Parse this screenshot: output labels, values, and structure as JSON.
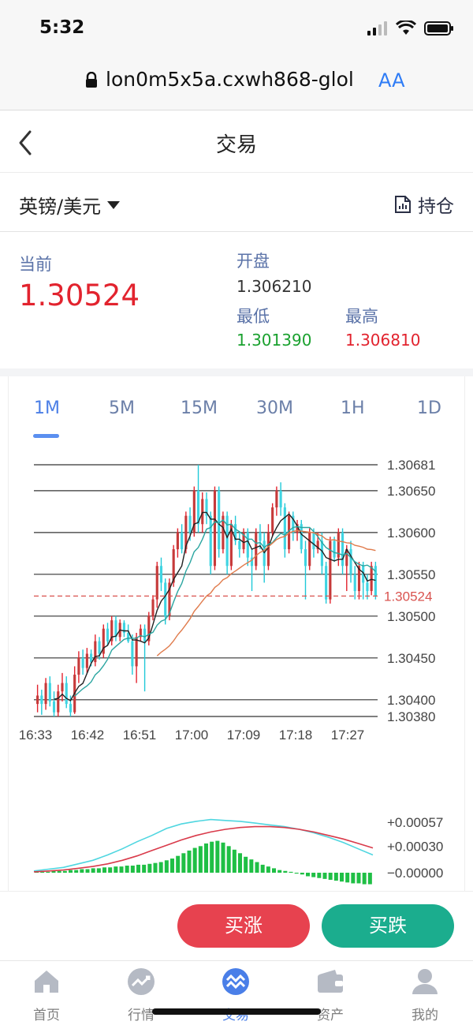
{
  "status_bar": {
    "time": "5:32"
  },
  "browser": {
    "url": "lon0m5x5a.cxwh868-glol",
    "text_size_label": "AA"
  },
  "header": {
    "title": "交易"
  },
  "symbol": {
    "name": "英镑/美元",
    "positions_label": "持仓"
  },
  "quote": {
    "current_label": "当前",
    "current_value": "1.30524",
    "open_label": "开盘",
    "open_value": "1.306210",
    "low_label": "最低",
    "low_value": "1.301390",
    "high_label": "最高",
    "high_value": "1.306810"
  },
  "colors": {
    "up": "#e2232e",
    "down": "#1aa12f",
    "accent": "#4c7fe6",
    "buy": "#e7424f",
    "sell": "#1bad8e"
  },
  "timeframes": [
    {
      "label": "1M",
      "active": true
    },
    {
      "label": "5M",
      "active": false
    },
    {
      "label": "15M",
      "active": false
    },
    {
      "label": "30M",
      "active": false
    },
    {
      "label": "1H",
      "active": false
    },
    {
      "label": "1D",
      "active": false
    }
  ],
  "chart_data": [
    {
      "type": "candlestick",
      "y_ticks": [
        "1.30681",
        "1.30650",
        "1.30600",
        "1.30550",
        "1.30500",
        "1.30450",
        "1.30400",
        "1.30380"
      ],
      "y_values": [
        1.30681,
        1.3065,
        1.306,
        1.3055,
        1.305,
        1.3045,
        1.304,
        1.3038
      ],
      "ylim": [
        1.3038,
        1.30681
      ],
      "current_price_label": "1.30524",
      "current_price": 1.30524,
      "x_ticks": [
        "16:33",
        "16:42",
        "16:51",
        "17:00",
        "17:09",
        "17:18",
        "17:27"
      ],
      "candles": [
        [
          1.30395,
          1.30405,
          1.30385,
          1.30418
        ],
        [
          1.30405,
          1.30395,
          1.30382,
          1.30412
        ],
        [
          1.30395,
          1.3042,
          1.30388,
          1.30426
        ],
        [
          1.3042,
          1.30398,
          1.30392,
          1.30428
        ],
        [
          1.30398,
          1.30385,
          1.3038,
          1.3041
        ],
        [
          1.30385,
          1.3041,
          1.3038,
          1.30418
        ],
        [
          1.3041,
          1.3042,
          1.30398,
          1.30432
        ],
        [
          1.3042,
          1.30395,
          1.3039,
          1.30428
        ],
        [
          1.30395,
          1.30385,
          1.3038,
          1.30405
        ],
        [
          1.30385,
          1.3043,
          1.30383,
          1.3044
        ],
        [
          1.3043,
          1.3045,
          1.3042,
          1.30458
        ],
        [
          1.3045,
          1.30438,
          1.3043,
          1.3046
        ],
        [
          1.30438,
          1.30455,
          1.30432,
          1.30462
        ],
        [
          1.30455,
          1.30445,
          1.3044,
          1.3046
        ],
        [
          1.30445,
          1.3047,
          1.3044,
          1.30478
        ],
        [
          1.3047,
          1.30455,
          1.30448,
          1.30475
        ],
        [
          1.30455,
          1.30485,
          1.3045,
          1.3049
        ],
        [
          1.30485,
          1.3047,
          1.30465,
          1.30492
        ],
        [
          1.3047,
          1.30495,
          1.30465,
          1.305
        ],
        [
          1.30495,
          1.30475,
          1.3047,
          1.305
        ],
        [
          1.30475,
          1.30492,
          1.3047,
          1.30496
        ],
        [
          1.30492,
          1.3048,
          1.30475,
          1.30495
        ],
        [
          1.3048,
          1.3047,
          1.30468,
          1.3049
        ],
        [
          1.3047,
          1.3044,
          1.3043,
          1.30478
        ],
        [
          1.3044,
          1.30475,
          1.3042,
          1.3048
        ],
        [
          1.30475,
          1.30485,
          1.3047,
          1.3049
        ],
        [
          1.30485,
          1.3047,
          1.3041,
          1.3049
        ],
        [
          1.3047,
          1.305,
          1.30465,
          1.30505
        ],
        [
          1.305,
          1.3052,
          1.30495,
          1.30525
        ],
        [
          1.3052,
          1.3056,
          1.3051,
          1.30565
        ],
        [
          1.3056,
          1.3054,
          1.3053,
          1.3057
        ],
        [
          1.3054,
          1.305,
          1.3049,
          1.30545
        ],
        [
          1.305,
          1.3054,
          1.30495,
          1.30545
        ],
        [
          1.3054,
          1.3058,
          1.30535,
          1.30585
        ],
        [
          1.3058,
          1.306,
          1.3057,
          1.30605
        ],
        [
          1.306,
          1.3058,
          1.30575,
          1.3061
        ],
        [
          1.3058,
          1.3062,
          1.30575,
          1.30625
        ],
        [
          1.3062,
          1.306,
          1.3059,
          1.3063
        ],
        [
          1.306,
          1.3065,
          1.30595,
          1.30655
        ],
        [
          1.3065,
          1.3061,
          1.306,
          1.30681
        ],
        [
          1.3061,
          1.3064,
          1.306,
          1.30648
        ],
        [
          1.3064,
          1.3062,
          1.3061,
          1.30648
        ],
        [
          1.3062,
          1.3056,
          1.3055,
          1.30625
        ],
        [
          1.3056,
          1.3065,
          1.30555,
          1.30655
        ],
        [
          1.3065,
          1.3058,
          1.3057,
          1.30655
        ],
        [
          1.3058,
          1.3062,
          1.30575,
          1.30625
        ],
        [
          1.3062,
          1.3056,
          1.3055,
          1.30625
        ],
        [
          1.3056,
          1.3061,
          1.30555,
          1.30615
        ],
        [
          1.3061,
          1.3059,
          1.30585,
          1.3062
        ],
        [
          1.3059,
          1.3058,
          1.3057,
          1.306
        ],
        [
          1.3058,
          1.306,
          1.30575,
          1.30605
        ],
        [
          1.306,
          1.3057,
          1.3056,
          1.30605
        ],
        [
          1.3057,
          1.3056,
          1.3053,
          1.3058
        ],
        [
          1.3056,
          1.306,
          1.30555,
          1.30605
        ],
        [
          1.306,
          1.3059,
          1.3058,
          1.3061
        ],
        [
          1.3059,
          1.3056,
          1.3054,
          1.306
        ],
        [
          1.3056,
          1.306,
          1.30555,
          1.3061
        ],
        [
          1.306,
          1.3063,
          1.30595,
          1.30635
        ],
        [
          1.3063,
          1.3065,
          1.3062,
          1.30655
        ],
        [
          1.3065,
          1.3063,
          1.3062,
          1.3066
        ],
        [
          1.3063,
          1.3058,
          1.3057,
          1.30635
        ],
        [
          1.3058,
          1.3062,
          1.30575,
          1.30625
        ],
        [
          1.3062,
          1.306,
          1.3059,
          1.30625
        ],
        [
          1.306,
          1.3061,
          1.3059,
          1.30615
        ],
        [
          1.3061,
          1.3058,
          1.30575,
          1.30615
        ],
        [
          1.3058,
          1.3056,
          1.3052,
          1.3059
        ],
        [
          1.3056,
          1.306,
          1.30555,
          1.30605
        ],
        [
          1.306,
          1.3058,
          1.3057,
          1.30605
        ],
        [
          1.3058,
          1.3059,
          1.30575,
          1.306
        ],
        [
          1.3059,
          1.3056,
          1.3055,
          1.306
        ],
        [
          1.3056,
          1.3052,
          1.30515,
          1.30565
        ],
        [
          1.3052,
          1.3059,
          1.30515,
          1.30595
        ],
        [
          1.3059,
          1.3057,
          1.30565,
          1.30595
        ],
        [
          1.3057,
          1.306,
          1.3056,
          1.30605
        ],
        [
          1.306,
          1.3056,
          1.3055,
          1.30605
        ],
        [
          1.3056,
          1.3058,
          1.3053,
          1.30585
        ],
        [
          1.3058,
          1.3055,
          1.3054,
          1.3059
        ],
        [
          1.3055,
          1.3053,
          1.3052,
          1.3056
        ],
        [
          1.3053,
          1.3056,
          1.3052,
          1.30565
        ],
        [
          1.3056,
          1.3054,
          1.3052,
          1.30565
        ],
        [
          1.3054,
          1.3053,
          1.3052,
          1.3055
        ],
        [
          1.3053,
          1.3056,
          1.30525,
          1.30565
        ],
        [
          1.3056,
          1.30524,
          1.3052,
          1.30565
        ]
      ]
    },
    {
      "type": "macd",
      "y_ticks": [
        "+0.00057",
        "+0.00030",
        "−0.00000"
      ],
      "y_values": [
        0.00057,
        0.0003,
        0.0
      ],
      "histogram": [
        1e-05,
        1e-05,
        1e-05,
        2e-05,
        2e-05,
        2e-05,
        3e-05,
        3e-05,
        4e-05,
        4e-05,
        5e-05,
        5e-05,
        6e-05,
        6e-05,
        7e-05,
        7e-05,
        8e-05,
        8e-05,
        9e-05,
        9e-05,
        0.0001,
        0.00011,
        0.00012,
        0.00014,
        0.00016,
        0.00019,
        0.00022,
        0.00025,
        0.00028,
        0.0003,
        0.00033,
        0.00035,
        0.00036,
        0.00034,
        0.0003,
        0.00026,
        0.00022,
        0.00018,
        0.00015,
        0.00012,
        9e-05,
        7e-05,
        5e-05,
        3e-05,
        2e-05,
        1e-05,
        -1e-05,
        -2e-05,
        -4e-05,
        -5e-05,
        -6e-05,
        -7e-05,
        -8e-05,
        -9e-05,
        -0.0001,
        -0.00011,
        -0.00012,
        -0.00012,
        -0.00013,
        -0.00013
      ],
      "dif": [
        2e-05,
        4e-05,
        6e-05,
        0.0001,
        0.00014,
        0.0002,
        0.00027,
        0.00035,
        0.00042,
        0.0005,
        0.00055,
        0.00058,
        0.0006,
        0.00059,
        0.00058,
        0.00056,
        0.00054,
        0.00052,
        0.00049,
        0.00045,
        0.0004,
        0.00034,
        0.00027,
        0.0002
      ],
      "dea": [
        1e-05,
        2e-05,
        3e-05,
        5e-05,
        7e-05,
        0.0001,
        0.00014,
        0.00019,
        0.00025,
        0.00031,
        0.00037,
        0.00042,
        0.00046,
        0.00049,
        0.00051,
        0.00052,
        0.00052,
        0.00051,
        0.00049,
        0.00046,
        0.00042,
        0.00038,
        0.00033,
        0.00028
      ]
    }
  ],
  "actions": {
    "buy_label": "买涨",
    "sell_label": "买跌"
  },
  "tabbar": [
    {
      "label": "首页",
      "icon": "home-icon",
      "active": false
    },
    {
      "label": "行情",
      "icon": "market-icon",
      "active": false
    },
    {
      "label": "交易",
      "icon": "trade-icon",
      "active": true
    },
    {
      "label": "资产",
      "icon": "wallet-icon",
      "active": false
    },
    {
      "label": "我的",
      "icon": "profile-icon",
      "active": false
    }
  ]
}
